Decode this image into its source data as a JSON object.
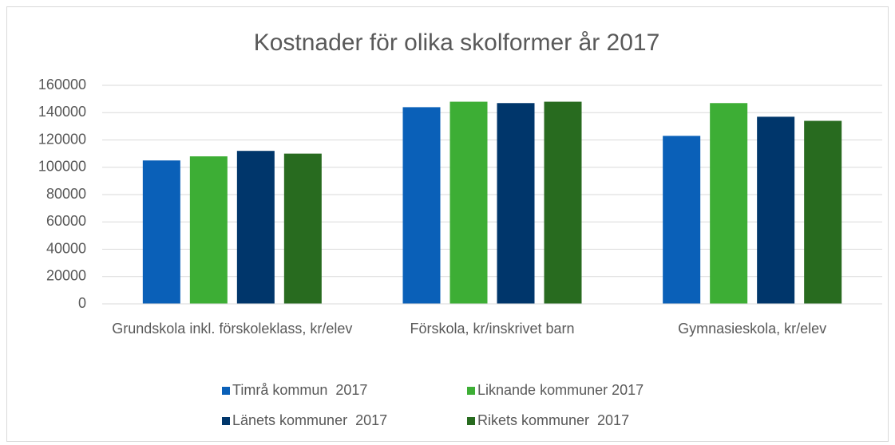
{
  "chart_data": {
    "type": "bar",
    "title": "Kostnader för olika skolformer år 2017",
    "categories": [
      "Grundskola inkl. förskoleklass, kr/elev",
      "Förskola, kr/inskrivet barn",
      "Gymnasieskola, kr/elev"
    ],
    "series": [
      {
        "name": "Timrå kommun  2017",
        "color": "#0a60b8",
        "values": [
          105000,
          144000,
          123000
        ]
      },
      {
        "name": "Liknande kommuner 2017",
        "color": "#3dae35",
        "values": [
          108000,
          148000,
          147000
        ]
      },
      {
        "name": "Länets kommuner  2017",
        "color": "#00366b",
        "values": [
          112000,
          147000,
          137000
        ]
      },
      {
        "name": "Rikets kommuner  2017",
        "color": "#286b1f",
        "values": [
          110000,
          148000,
          134000
        ]
      }
    ],
    "ylim": [
      0,
      160000
    ],
    "yticks": [
      0,
      20000,
      40000,
      60000,
      80000,
      100000,
      120000,
      140000,
      160000
    ],
    "grid": true
  }
}
